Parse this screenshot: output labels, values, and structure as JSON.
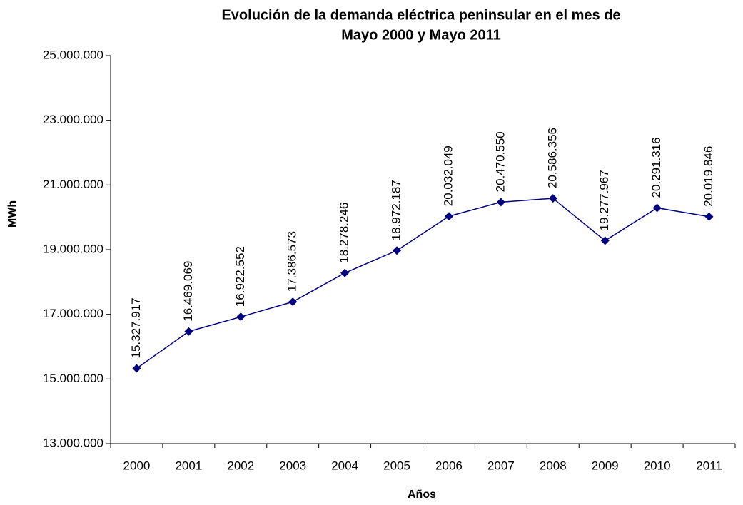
{
  "chart_data": {
    "type": "line",
    "title": [
      "Evolución de la demanda eléctrica peninsular en el mes de",
      "Mayo 2000 y Mayo  2011"
    ],
    "x_label": "Años",
    "y_label": "MWh",
    "categories": [
      "2000",
      "2001",
      "2002",
      "2003",
      "2004",
      "2005",
      "2006",
      "2007",
      "2008",
      "2009",
      "2010",
      "2011"
    ],
    "values": [
      15327917,
      16469069,
      16922552,
      17386573,
      18278246,
      18972187,
      20032049,
      20470550,
      20586356,
      19277967,
      20291316,
      20019846
    ],
    "value_labels": [
      "15.327.917",
      "16.469.069",
      "16.922.552",
      "17.386.573",
      "18.278.246",
      "18.972.187",
      "20.032.049",
      "20.470.550",
      "20.586.356",
      "19.277.967",
      "20.291.316",
      "20.019.846"
    ],
    "color": "#000080",
    "ylim": [
      13000000,
      25000000
    ],
    "yticks": [
      {
        "value": 13000000,
        "label": "13.000.000"
      },
      {
        "value": 15000000,
        "label": "15.000.000"
      },
      {
        "value": 17000000,
        "label": "17.000.000"
      },
      {
        "value": 19000000,
        "label": "19.000.000"
      },
      {
        "value": 21000000,
        "label": "21.000.000"
      },
      {
        "value": 23000000,
        "label": "23.000.000"
      },
      {
        "value": 25000000,
        "label": "25.000.000"
      }
    ]
  }
}
